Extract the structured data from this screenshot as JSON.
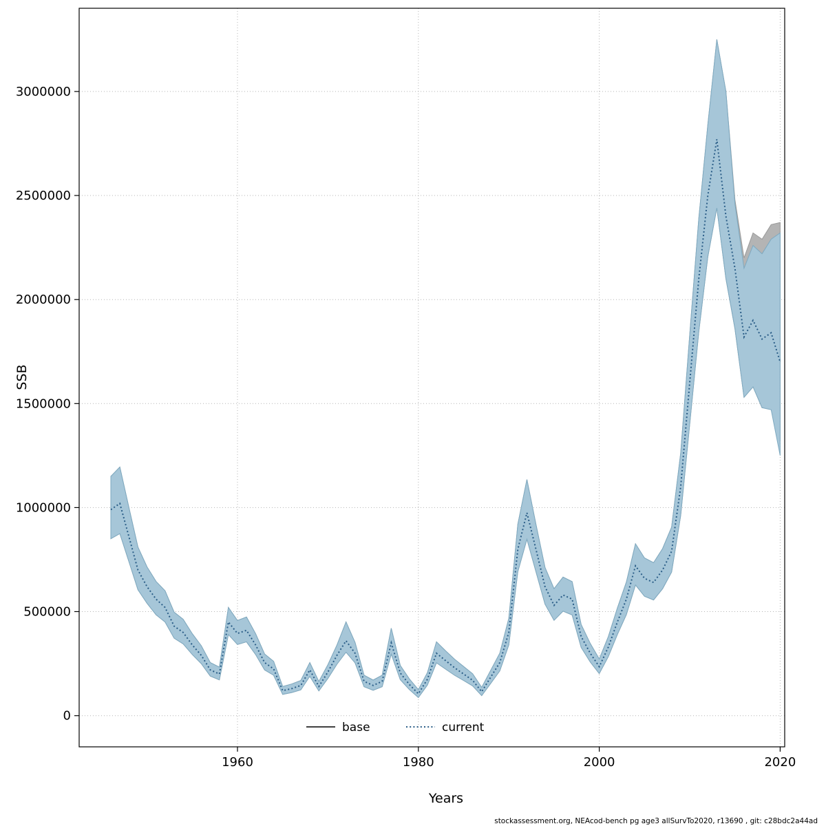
{
  "figure": {
    "footer": "stockassessment.org, NEAcod-bench pg age3 allSurvTo2020, r13690 , git: c28bdc2a44ad"
  },
  "chart_data": {
    "type": "line",
    "title": "",
    "xlabel": "Years",
    "ylabel": "SSB",
    "xlim": [
      1942.5,
      2020.5
    ],
    "ylim": [
      -150000,
      3400000
    ],
    "x_ticks": [
      1960,
      1980,
      2000,
      2020
    ],
    "y_ticks": [
      0,
      500000,
      1000000,
      1500000,
      2000000,
      2500000,
      3000000
    ],
    "grid": "dotted",
    "legend_position": "bottom-center-inside",
    "years": [
      1946,
      1947,
      1948,
      1949,
      1950,
      1951,
      1952,
      1953,
      1954,
      1955,
      1956,
      1957,
      1958,
      1959,
      1960,
      1961,
      1962,
      1963,
      1964,
      1965,
      1966,
      1967,
      1968,
      1969,
      1970,
      1971,
      1972,
      1973,
      1974,
      1975,
      1976,
      1977,
      1978,
      1979,
      1980,
      1981,
      1982,
      1983,
      1984,
      1985,
      1986,
      1987,
      1988,
      1989,
      1990,
      1991,
      1992,
      1993,
      1994,
      1995,
      1996,
      1997,
      1998,
      1999,
      2000,
      2001,
      2002,
      2003,
      2004,
      2005,
      2006,
      2007,
      2008,
      2009,
      2010,
      2011,
      2012,
      2013,
      2014,
      2015,
      2016,
      2017,
      2018,
      2019,
      2020
    ],
    "series": [
      {
        "name": "base",
        "color": "#000000",
        "line_style": "solid",
        "band_color": "#b4b4b4",
        "band_edge": "#9a9a9a",
        "values": [
          990000,
          1020000,
          860000,
          700000,
          620000,
          560000,
          520000,
          430000,
          400000,
          340000,
          290000,
          220000,
          200000,
          450000,
          395000,
          410000,
          340000,
          255000,
          225000,
          120000,
          130000,
          145000,
          220000,
          140000,
          210000,
          290000,
          360000,
          300000,
          165000,
          145000,
          165000,
          350000,
          205000,
          150000,
          105000,
          175000,
          300000,
          265000,
          230000,
          200000,
          170000,
          115000,
          185000,
          255000,
          400000,
          800000,
          975000,
          800000,
          620000,
          530000,
          580000,
          560000,
          380000,
          300000,
          235000,
          330000,
          450000,
          560000,
          720000,
          660000,
          640000,
          700000,
          790000,
          1100000,
          1600000,
          2100000,
          2500000,
          2770000,
          2400000,
          2150000,
          1820000,
          1900000,
          1810000,
          1840000,
          1700000
        ],
        "lower": [
          850000,
          875000,
          740000,
          605000,
          540000,
          485000,
          450000,
          372000,
          345000,
          294000,
          250000,
          190000,
          172000,
          390000,
          342000,
          355000,
          294000,
          220000,
          194000,
          102000,
          111000,
          124000,
          189000,
          119000,
          179000,
          247000,
          305000,
          254000,
          139000,
          122000,
          139000,
          296000,
          173000,
          126000,
          87000,
          147000,
          254000,
          224000,
          194000,
          169000,
          143000,
          96000,
          155000,
          215000,
          340000,
          692000,
          848000,
          692000,
          536000,
          458000,
          502000,
          484000,
          328000,
          258000,
          202000,
          284000,
          390000,
          486000,
          628000,
          574000,
          556000,
          610000,
          690000,
          962000,
          1400000,
          1845000,
          2205000,
          2440000,
          2100000,
          1860000,
          1530000,
          1580000,
          1480000,
          1500000,
          1320000
        ],
        "upper": [
          1150000,
          1195000,
          1000000,
          810000,
          715000,
          645000,
          600000,
          497000,
          463000,
          394000,
          336000,
          255000,
          233000,
          520000,
          457000,
          474000,
          394000,
          296000,
          261000,
          140000,
          152000,
          169000,
          255000,
          164000,
          245000,
          339000,
          450000,
          352000,
          194000,
          171000,
          194000,
          420000,
          241000,
          177000,
          125000,
          206000,
          355000,
          312000,
          271000,
          236000,
          201000,
          136000,
          218000,
          300000,
          468000,
          920000,
          1135000,
          920000,
          712000,
          610000,
          666000,
          644000,
          438000,
          347000,
          272000,
          380000,
          517000,
          642000,
          826000,
          758000,
          735000,
          803000,
          906000,
          1262000,
          1830000,
          2390000,
          2840000,
          3250000,
          3000000,
          2480000,
          2200000,
          2320000,
          2290000,
          2360000,
          2370000
        ]
      },
      {
        "name": "current",
        "color": "#2a5d87",
        "line_style": "dotted",
        "band_color": "#a6c6d8",
        "band_edge": "#7ea9c0",
        "values": [
          990000,
          1020000,
          860000,
          700000,
          620000,
          560000,
          520000,
          430000,
          400000,
          340000,
          290000,
          220000,
          200000,
          450000,
          395000,
          410000,
          340000,
          255000,
          225000,
          120000,
          130000,
          145000,
          220000,
          140000,
          210000,
          290000,
          360000,
          300000,
          165000,
          145000,
          165000,
          350000,
          205000,
          150000,
          105000,
          175000,
          300000,
          265000,
          230000,
          200000,
          170000,
          115000,
          185000,
          255000,
          400000,
          800000,
          975000,
          800000,
          620000,
          530000,
          580000,
          560000,
          380000,
          300000,
          235000,
          330000,
          450000,
          560000,
          720000,
          660000,
          640000,
          700000,
          790000,
          1100000,
          1600000,
          2100000,
          2500000,
          2770000,
          2400000,
          2150000,
          1820000,
          1900000,
          1810000,
          1840000,
          1700000
        ],
        "lower": [
          850000,
          875000,
          740000,
          605000,
          540000,
          485000,
          450000,
          372000,
          345000,
          294000,
          250000,
          190000,
          172000,
          390000,
          342000,
          355000,
          294000,
          220000,
          194000,
          102000,
          111000,
          124000,
          189000,
          119000,
          179000,
          247000,
          305000,
          254000,
          139000,
          122000,
          139000,
          296000,
          173000,
          126000,
          87000,
          147000,
          254000,
          224000,
          194000,
          169000,
          143000,
          96000,
          155000,
          215000,
          340000,
          692000,
          848000,
          692000,
          536000,
          458000,
          502000,
          484000,
          328000,
          258000,
          202000,
          284000,
          390000,
          486000,
          628000,
          574000,
          556000,
          610000,
          690000,
          962000,
          1400000,
          1845000,
          2205000,
          2440000,
          2100000,
          1860000,
          1530000,
          1580000,
          1480000,
          1470000,
          1250000
        ],
        "upper": [
          1150000,
          1195000,
          1000000,
          810000,
          715000,
          645000,
          600000,
          497000,
          463000,
          394000,
          336000,
          255000,
          233000,
          520000,
          457000,
          474000,
          394000,
          296000,
          261000,
          140000,
          152000,
          169000,
          255000,
          164000,
          245000,
          339000,
          450000,
          352000,
          194000,
          171000,
          194000,
          420000,
          241000,
          177000,
          125000,
          206000,
          355000,
          312000,
          271000,
          236000,
          201000,
          136000,
          218000,
          300000,
          468000,
          920000,
          1135000,
          920000,
          712000,
          610000,
          666000,
          644000,
          438000,
          347000,
          272000,
          380000,
          517000,
          642000,
          826000,
          758000,
          735000,
          803000,
          906000,
          1262000,
          1830000,
          2390000,
          2840000,
          3250000,
          3000000,
          2460000,
          2150000,
          2260000,
          2220000,
          2290000,
          2320000
        ]
      }
    ]
  }
}
